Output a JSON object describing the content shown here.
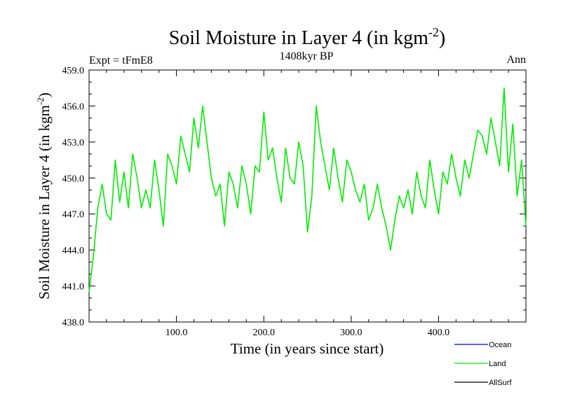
{
  "chart_data": {
    "type": "line",
    "title_main": "Soil Moisture in Layer 4 (in kgm",
    "title_sup": "-2",
    "title_close": ")",
    "subtitle_left": "Expt = tFmE8",
    "subtitle_center": "1408kyr BP",
    "subtitle_right": "Ann",
    "xlabel": "Time (in years since start)",
    "ylabel_main": "Soil Moisture in Layer 4 (in kgm",
    "ylabel_sup": "-2",
    "ylabel_close": ")",
    "xlim": [
      0,
      500
    ],
    "ylim": [
      438.0,
      459.0
    ],
    "xticks": [
      100,
      200,
      300,
      400
    ],
    "xtick_labels": [
      "100.0",
      "200.0",
      "300.0",
      "400.0"
    ],
    "yticks": [
      438,
      441,
      444,
      447,
      450,
      453,
      456,
      459
    ],
    "ytick_labels": [
      "438.0",
      "441.0",
      "444.0",
      "447.0",
      "450.0",
      "453.0",
      "456.0",
      "459.0"
    ],
    "legend": [
      {
        "name": "Ocean",
        "color": "#0000ff"
      },
      {
        "name": "Land",
        "color": "#00ee00"
      },
      {
        "name": "AllSurf",
        "color": "#000000"
      }
    ],
    "series": [
      {
        "name": "Land",
        "color": "#00ee00",
        "x": [
          0,
          5,
          10,
          15,
          20,
          25,
          30,
          35,
          40,
          45,
          50,
          55,
          60,
          65,
          70,
          75,
          80,
          85,
          90,
          95,
          100,
          105,
          110,
          115,
          120,
          125,
          130,
          135,
          140,
          145,
          150,
          155,
          160,
          165,
          170,
          175,
          180,
          185,
          190,
          195,
          200,
          205,
          210,
          215,
          220,
          225,
          230,
          235,
          240,
          245,
          250,
          255,
          260,
          265,
          270,
          275,
          280,
          285,
          290,
          295,
          300,
          305,
          310,
          315,
          320,
          325,
          330,
          335,
          340,
          345,
          350,
          355,
          360,
          365,
          370,
          375,
          380,
          385,
          390,
          395,
          400,
          405,
          410,
          415,
          420,
          425,
          430,
          435,
          440,
          445,
          450,
          455,
          460,
          465,
          470,
          475,
          480,
          485,
          490,
          495,
          500
        ],
        "y": [
          440.5,
          443.5,
          447.5,
          449.5,
          447.0,
          446.5,
          451.5,
          448.0,
          450.5,
          447.5,
          452.0,
          450.0,
          447.5,
          449.0,
          447.5,
          451.5,
          449.0,
          446.0,
          452.0,
          451.0,
          449.5,
          453.5,
          452.0,
          450.5,
          455.0,
          452.5,
          456.0,
          453.0,
          450.0,
          448.5,
          449.5,
          446.0,
          450.5,
          449.5,
          447.5,
          451.0,
          449.5,
          447.0,
          451.0,
          450.5,
          455.5,
          451.5,
          452.5,
          450.0,
          448.0,
          452.5,
          450.0,
          449.5,
          453.0,
          451.0,
          445.5,
          448.5,
          456.0,
          453.0,
          451.0,
          449.0,
          452.5,
          450.0,
          448.0,
          451.5,
          450.5,
          449.0,
          448.0,
          449.5,
          446.5,
          447.5,
          449.5,
          447.5,
          446.0,
          444.0,
          446.5,
          448.5,
          447.5,
          449.0,
          447.0,
          450.5,
          448.5,
          447.5,
          451.5,
          449.0,
          447.0,
          450.5,
          449.5,
          452.0,
          450.0,
          448.5,
          451.5,
          450.0,
          452.0,
          454.0,
          453.5,
          452.0,
          455.0,
          453.0,
          451.0,
          457.5,
          450.5,
          454.5,
          448.5,
          451.5,
          446.0
        ]
      }
    ]
  }
}
